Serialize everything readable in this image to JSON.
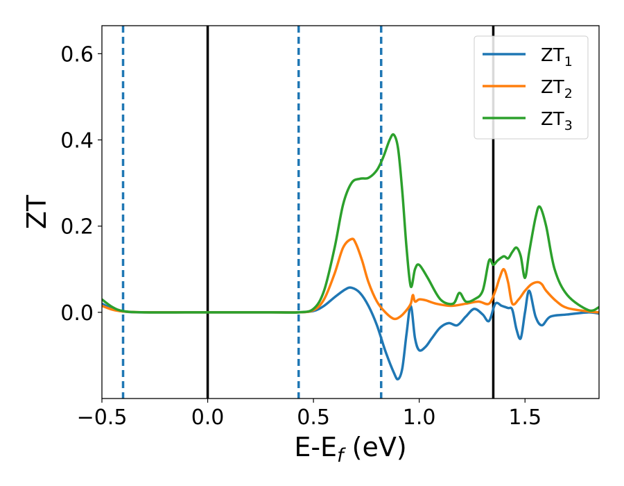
{
  "chart_data": {
    "type": "line",
    "xlabel_main": "E-E",
    "xlabel_sub": "f",
    "xlabel_unit": " (eV)",
    "ylabel": "ZT",
    "xlim": [
      -0.5,
      1.85
    ],
    "ylim": [
      -0.2,
      0.665
    ],
    "xticks": [
      -0.5,
      0.0,
      0.5,
      1.0,
      1.5
    ],
    "xtick_labels": [
      "−0.5",
      "0.0",
      "0.5",
      "1.0",
      "1.5"
    ],
    "yticks": [
      0.0,
      0.2,
      0.4,
      0.6
    ],
    "ytick_labels": [
      "0.0",
      "0.2",
      "0.4",
      "0.6"
    ],
    "grid": false,
    "legend_position": "top-right",
    "vlines_solid": [
      0.0,
      1.35
    ],
    "vlines_dashed": [
      -0.4,
      0.43,
      0.82
    ],
    "vline_solid_color": "#000000",
    "vline_dashed_color": "#1f77b4",
    "series": [
      {
        "name_main": "ZT",
        "name_sub": "1",
        "color": "#1f77b4",
        "x": [
          -0.5,
          -0.45,
          -0.4,
          -0.3,
          0.0,
          0.3,
          0.43,
          0.5,
          0.55,
          0.6,
          0.65,
          0.68,
          0.72,
          0.76,
          0.8,
          0.84,
          0.88,
          0.9,
          0.92,
          0.94,
          0.96,
          0.98,
          1.0,
          1.03,
          1.06,
          1.1,
          1.14,
          1.18,
          1.22,
          1.26,
          1.3,
          1.33,
          1.36,
          1.39,
          1.42,
          1.44,
          1.46,
          1.48,
          1.5,
          1.52,
          1.55,
          1.58,
          1.62,
          1.7,
          1.8,
          1.85
        ],
        "y": [
          0.02,
          0.008,
          0.002,
          0.0,
          0.0,
          0.0,
          0.0,
          0.003,
          0.015,
          0.035,
          0.053,
          0.057,
          0.045,
          0.015,
          -0.03,
          -0.09,
          -0.14,
          -0.155,
          -0.13,
          -0.05,
          0.015,
          -0.06,
          -0.088,
          -0.08,
          -0.06,
          -0.035,
          -0.025,
          -0.03,
          -0.01,
          0.008,
          -0.005,
          -0.02,
          0.02,
          0.015,
          0.01,
          0.006,
          -0.04,
          -0.06,
          0.0,
          0.05,
          -0.01,
          -0.03,
          -0.01,
          -0.005,
          0.0,
          -0.003
        ]
      },
      {
        "name_main": "ZT",
        "name_sub": "2",
        "color": "#ff7f0e",
        "x": [
          -0.5,
          -0.45,
          -0.4,
          -0.3,
          0.0,
          0.3,
          0.43,
          0.5,
          0.55,
          0.6,
          0.64,
          0.68,
          0.7,
          0.73,
          0.76,
          0.8,
          0.84,
          0.88,
          0.91,
          0.94,
          0.96,
          0.97,
          0.98,
          1.0,
          1.03,
          1.08,
          1.15,
          1.22,
          1.28,
          1.33,
          1.36,
          1.38,
          1.4,
          1.42,
          1.44,
          1.47,
          1.5,
          1.53,
          1.56,
          1.58,
          1.6,
          1.65,
          1.7,
          1.8,
          1.85
        ],
        "y": [
          0.015,
          0.006,
          0.002,
          0.0,
          0.0,
          0.0,
          0.0,
          0.005,
          0.03,
          0.09,
          0.15,
          0.17,
          0.16,
          0.12,
          0.07,
          0.025,
          0.0,
          -0.015,
          -0.01,
          0.005,
          0.02,
          0.04,
          0.025,
          0.03,
          0.028,
          0.02,
          0.015,
          0.02,
          0.025,
          0.02,
          0.05,
          0.08,
          0.1,
          0.07,
          0.02,
          0.03,
          0.05,
          0.065,
          0.07,
          0.065,
          0.05,
          0.025,
          0.01,
          0.002,
          0.0
        ]
      },
      {
        "name_main": "ZT",
        "name_sub": "3",
        "color": "#2ca02c",
        "x": [
          -0.5,
          -0.45,
          -0.4,
          -0.3,
          0.0,
          0.3,
          0.43,
          0.5,
          0.55,
          0.6,
          0.64,
          0.68,
          0.72,
          0.76,
          0.8,
          0.83,
          0.86,
          0.88,
          0.9,
          0.92,
          0.94,
          0.96,
          0.98,
          1.0,
          1.04,
          1.1,
          1.16,
          1.19,
          1.22,
          1.26,
          1.3,
          1.33,
          1.35,
          1.37,
          1.4,
          1.42,
          1.44,
          1.46,
          1.48,
          1.5,
          1.52,
          1.55,
          1.57,
          1.6,
          1.64,
          1.7,
          1.8,
          1.85
        ],
        "y": [
          0.03,
          0.012,
          0.003,
          0.0,
          0.0,
          0.0,
          0.0,
          0.008,
          0.05,
          0.15,
          0.25,
          0.3,
          0.31,
          0.312,
          0.33,
          0.36,
          0.4,
          0.412,
          0.38,
          0.28,
          0.15,
          0.06,
          0.1,
          0.11,
          0.08,
          0.03,
          0.02,
          0.045,
          0.025,
          0.03,
          0.05,
          0.12,
          0.11,
          0.12,
          0.13,
          0.125,
          0.14,
          0.15,
          0.13,
          0.08,
          0.14,
          0.22,
          0.245,
          0.2,
          0.1,
          0.04,
          0.005,
          0.012
        ]
      }
    ]
  }
}
